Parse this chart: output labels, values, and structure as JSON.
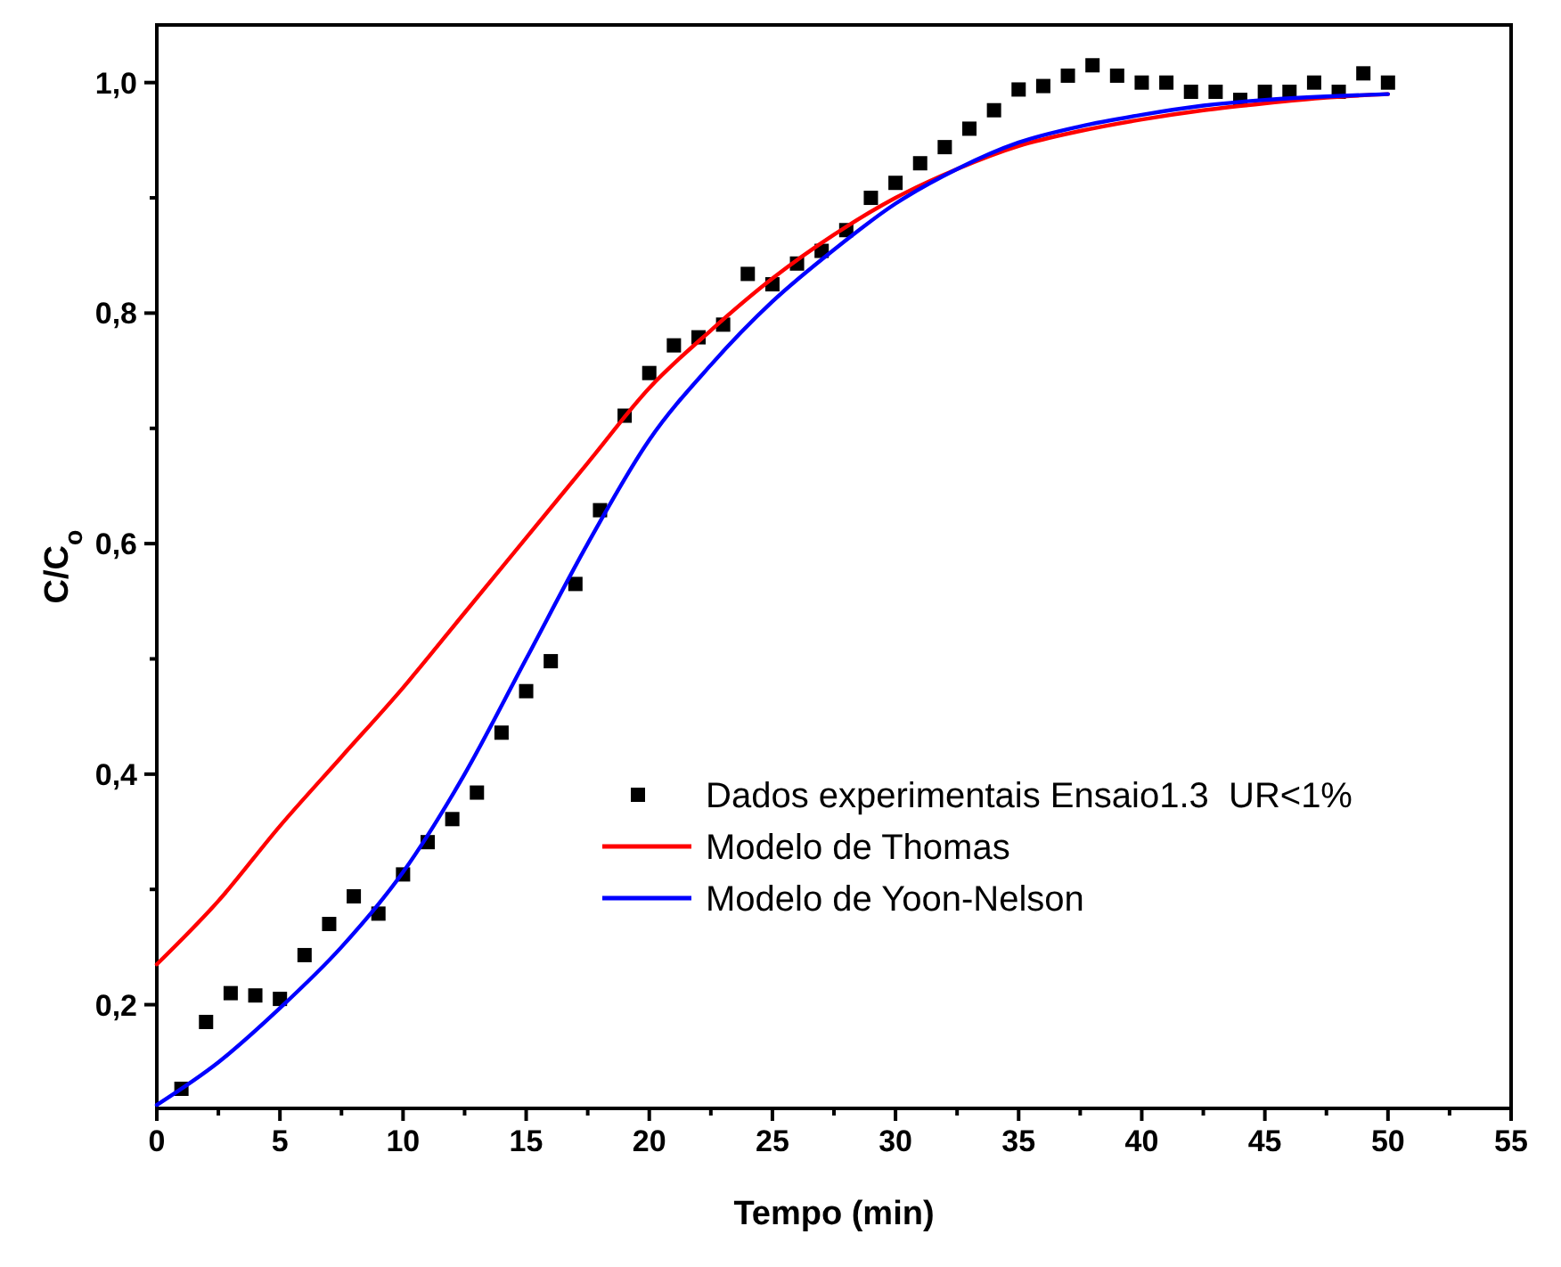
{
  "chart_data": {
    "type": "scatter",
    "xlabel": "Tempo (min)",
    "ylabel": "C/C$_{o}$",
    "xlim": [
      0,
      55
    ],
    "ylim": [
      0.11,
      1.05
    ],
    "xticks": [
      0,
      {
        "value": 2.5,
        "label": null
      },
      5,
      {
        "value": 7.5,
        "label": null
      },
      10,
      {
        "value": 12.5,
        "label": null
      },
      15,
      {
        "value": 17.5,
        "label": null
      },
      20,
      {
        "value": 22.5,
        "label": null
      },
      25,
      {
        "value": 27.5,
        "label": null
      },
      30,
      {
        "value": 32.5,
        "label": null
      },
      35,
      {
        "value": 37.5,
        "label": null
      },
      40,
      {
        "value": 42.5,
        "label": null
      },
      45,
      {
        "value": 47.5,
        "label": null
      },
      50,
      {
        "value": 52.5,
        "label": null
      },
      55
    ],
    "yticks": [
      {
        "value": 0.2,
        "label": "0,2"
      },
      {
        "value": 0.3,
        "label": null
      },
      {
        "value": 0.4,
        "label": "0,4"
      },
      {
        "value": 0.5,
        "label": null
      },
      {
        "value": 0.6,
        "label": "0,6"
      },
      {
        "value": 0.7,
        "label": null
      },
      {
        "value": 0.8,
        "label": "0,8"
      },
      {
        "value": 0.9,
        "label": null
      },
      {
        "value": 1.0,
        "label": "1,0"
      }
    ],
    "grid": false,
    "legend": "right",
    "series": [
      {
        "name": "Dados experimentais Ensaio1.3  UR<1%",
        "marker": "square",
        "color": "#000000",
        "x": [
          1,
          2,
          3,
          4,
          5,
          6,
          7,
          8,
          9,
          10,
          11,
          12,
          13,
          14,
          15,
          16,
          17,
          18,
          19,
          20,
          21,
          22,
          23,
          24,
          25,
          26,
          27,
          28,
          29,
          30,
          31,
          32,
          33,
          34,
          35,
          36,
          37,
          38,
          39,
          40,
          41,
          42,
          43,
          44,
          45,
          46,
          47,
          48,
          49,
          50
        ],
        "values": [
          0.127,
          0.185,
          0.21,
          0.208,
          0.205,
          0.243,
          0.27,
          0.294,
          0.279,
          0.313,
          0.341,
          0.361,
          0.384,
          0.436,
          0.472,
          0.498,
          0.565,
          0.629,
          0.711,
          0.748,
          0.772,
          0.779,
          0.79,
          0.834,
          0.825,
          0.843,
          0.854,
          0.872,
          0.9,
          0.913,
          0.93,
          0.944,
          0.96,
          0.976,
          0.994,
          0.997,
          1.006,
          1.015,
          1.006,
          1.0,
          1.0,
          0.992,
          0.992,
          0.985,
          0.992,
          0.992,
          1.0,
          0.992,
          1.008,
          1.0
        ]
      },
      {
        "name": "Modelo de Thomas",
        "type": "line",
        "marker": "none",
        "line_style": "solid",
        "color": "#ff0000",
        "x": [
          0,
          2.5,
          5,
          7.5,
          10,
          12.5,
          15,
          17.5,
          20,
          22.5,
          25,
          27.5,
          30,
          32.5,
          35,
          37.5,
          40,
          42.5,
          45,
          47.5,
          50
        ],
        "values": [
          0.235,
          0.29,
          0.355,
          0.415,
          0.475,
          0.54,
          0.605,
          0.67,
          0.735,
          0.785,
          0.83,
          0.868,
          0.9,
          0.925,
          0.945,
          0.958,
          0.968,
          0.976,
          0.982,
          0.987,
          0.99
        ]
      },
      {
        "name": "Modelo de Yoon-Nelson",
        "type": "line",
        "marker": "none",
        "line_style": "solid",
        "color": "#0000ff",
        "x": [
          0,
          2.5,
          5,
          7.5,
          10,
          12.5,
          15,
          17.5,
          20,
          22.5,
          25,
          27.5,
          30,
          32.5,
          35,
          37.5,
          40,
          42.5,
          45,
          47.5,
          50
        ],
        "values": [
          0.113,
          0.15,
          0.197,
          0.25,
          0.315,
          0.4,
          0.5,
          0.6,
          0.69,
          0.755,
          0.81,
          0.855,
          0.895,
          0.925,
          0.948,
          0.962,
          0.972,
          0.98,
          0.985,
          0.988,
          0.99
        ]
      }
    ]
  }
}
